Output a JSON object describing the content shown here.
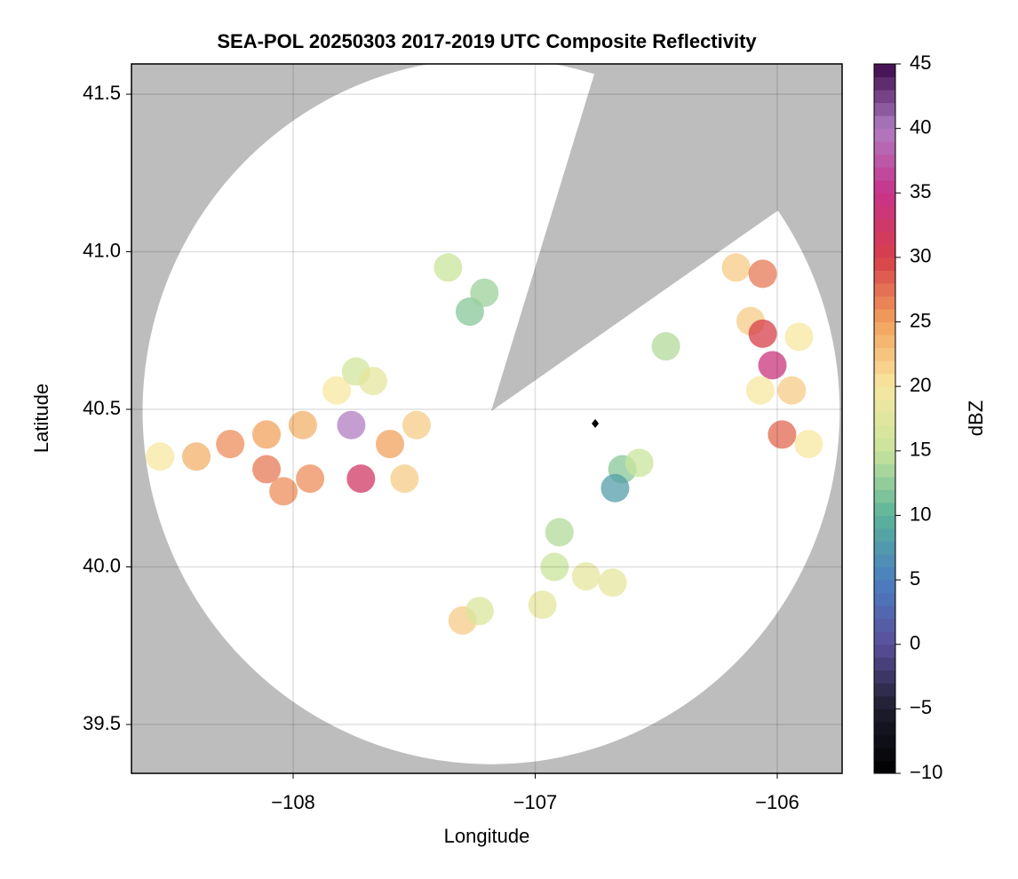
{
  "chart_data": {
    "type": "radar-map",
    "title": "SEA-POL 20250303 2017-2019 UTC Composite Reflectivity",
    "x_label": "Longitude",
    "y_label": "Latitude",
    "xlim": [
      -108.668,
      -105.732
    ],
    "ylim": [
      39.345,
      41.596
    ],
    "xticks": [
      {
        "value": -108,
        "label": "−108"
      },
      {
        "value": -107,
        "label": "−107"
      },
      {
        "value": -106,
        "label": "−106"
      }
    ],
    "yticks": [
      39.5,
      {
        "value": 40.0,
        "label": "40.0"
      },
      40.5,
      {
        "value": 41.0,
        "label": "41.0"
      },
      41.5
    ],
    "grid": true,
    "background_color": "#bdbdbd",
    "coverage": {
      "center": [
        -107.182,
        40.494
      ],
      "radius_lon": 1.44,
      "radius_lat": 1.12,
      "blocked_bearings": [
        17,
        55
      ]
    },
    "site_marker": [
      -106.752,
      40.455
    ],
    "colorbar": {
      "label": "dBZ",
      "lim": [
        -10,
        45
      ],
      "ticks": [
        {
          "value": -10,
          "label": "−10"
        },
        {
          "value": -5,
          "label": "−5"
        },
        0,
        5,
        10,
        15,
        20,
        25,
        30,
        35,
        40,
        45
      ],
      "colors": [
        "#000000",
        "#1d1d2e",
        "#5a4f9a",
        "#4a7fc0",
        "#5bb39a",
        "#c9e49b",
        "#f7e7a0",
        "#f2a25d",
        "#d63f4a",
        "#c7338a",
        "#b07cc2",
        "#3d0a4a"
      ]
    },
    "echoes": [
      [
        -108.55,
        40.35,
        20
      ],
      [
        -108.4,
        40.35,
        24
      ],
      [
        -108.26,
        40.39,
        26
      ],
      [
        -108.11,
        40.31,
        27
      ],
      [
        -108.11,
        40.42,
        25
      ],
      [
        -107.96,
        40.45,
        24
      ],
      [
        -107.93,
        40.28,
        26
      ],
      [
        -108.04,
        40.24,
        26
      ],
      [
        -107.82,
        40.56,
        20
      ],
      [
        -107.74,
        40.62,
        16
      ],
      [
        -107.67,
        40.59,
        18
      ],
      [
        -107.6,
        40.39,
        25
      ],
      [
        -107.49,
        40.45,
        22
      ],
      [
        -107.54,
        40.28,
        22
      ],
      [
        -107.72,
        40.28,
        32
      ],
      [
        -107.76,
        40.45,
        40
      ],
      [
        -107.36,
        40.95,
        15
      ],
      [
        -107.27,
        40.81,
        12
      ],
      [
        -107.21,
        40.87,
        13
      ],
      [
        -106.17,
        40.95,
        22
      ],
      [
        -106.06,
        40.93,
        27
      ],
      [
        -106.11,
        40.78,
        22
      ],
      [
        -106.06,
        40.74,
        30
      ],
      [
        -106.02,
        40.64,
        34
      ],
      [
        -105.94,
        40.56,
        22
      ],
      [
        -106.07,
        40.56,
        20
      ],
      [
        -105.98,
        40.42,
        28
      ],
      [
        -105.87,
        40.39,
        20
      ],
      [
        -105.91,
        40.73,
        20
      ],
      [
        -106.46,
        40.7,
        14
      ],
      [
        -106.64,
        40.31,
        12
      ],
      [
        -106.67,
        40.25,
        8
      ],
      [
        -106.57,
        40.33,
        15
      ],
      [
        -106.9,
        40.11,
        14
      ],
      [
        -106.92,
        40.0,
        15
      ],
      [
        -106.79,
        39.97,
        18
      ],
      [
        -106.68,
        39.95,
        18
      ],
      [
        -106.97,
        39.88,
        18
      ],
      [
        -107.3,
        39.83,
        22
      ],
      [
        -107.23,
        39.86,
        17
      ]
    ]
  }
}
